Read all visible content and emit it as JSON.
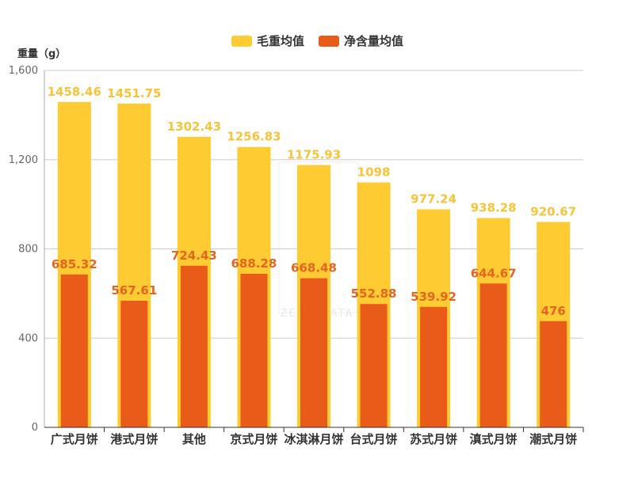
{
  "chart_data": {
    "type": "bar",
    "ylabel": "重量（g）",
    "ylim": [
      0,
      1600
    ],
    "yticks": [
      0,
      400,
      800,
      1200,
      1600
    ],
    "ytick_labels": [
      "0",
      "400",
      "800",
      "1,200",
      "1,600"
    ],
    "categories": [
      "广式月饼",
      "港式月饼",
      "其他",
      "京式月饼",
      "冰淇淋月饼",
      "台式月饼",
      "苏式月饼",
      "滇式月饼",
      "潮式月饼"
    ],
    "series": [
      {
        "name": "毛重均值",
        "color": "#ffcb33",
        "values": [
          1458.46,
          1451.75,
          1302.43,
          1256.83,
          1175.93,
          1098,
          977.24,
          938.28,
          920.67
        ]
      },
      {
        "name": "净含量均值",
        "color": "#e95b18",
        "values": [
          685.32,
          567.61,
          724.43,
          688.28,
          668.48,
          552.88,
          539.92,
          644.67,
          476
        ]
      }
    ],
    "value_label_colors": [
      "#f5c43a",
      "#e2661f"
    ],
    "legend_position": "top-center",
    "grid": true,
    "watermark": "ZENO DATA"
  }
}
